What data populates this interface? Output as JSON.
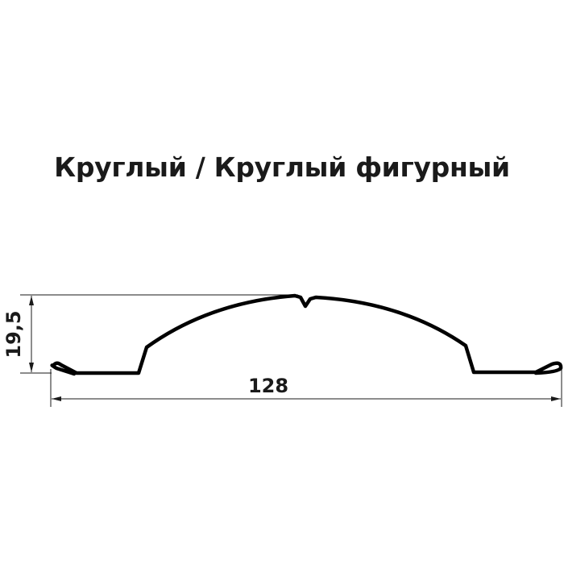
{
  "title": "Круглый / Круглый фигурный",
  "dimensions": {
    "height_label": "19,5",
    "width_label": "128"
  },
  "colors": {
    "profile": "#000000",
    "dimension_lines": "#1a1a1a",
    "text": "#1a1a1a"
  }
}
